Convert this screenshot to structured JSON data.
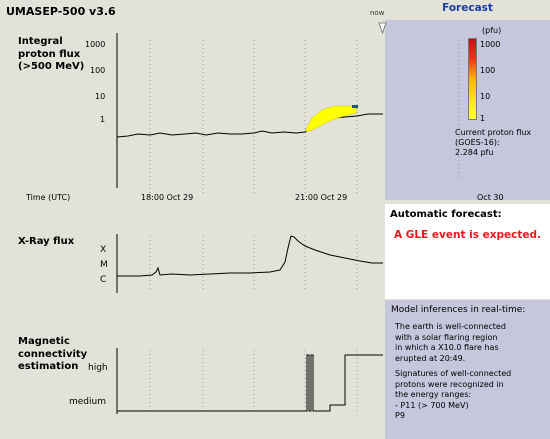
{
  "app_title": "UMASEP-500 v3.6",
  "now_label": "now",
  "forecast_header": "Forecast",
  "proton_panel": {
    "title_lines": [
      "Integral",
      "proton flux",
      "(>500 MeV)"
    ],
    "y_ticks": [
      "1000",
      "100",
      "10",
      "1"
    ],
    "x_axis_label": "Time (UTC)",
    "x_ticks": [
      "18:00 Oct 29",
      "21:00 Oct 29"
    ]
  },
  "forecast_panel": {
    "unit": "(pfu)",
    "colorbar_ticks": [
      "1000",
      "100",
      "10",
      "1"
    ],
    "current_flux_lines": [
      "Current proton flux",
      "(GOES-16):",
      "2.284 pfu"
    ],
    "date_label": "Oct 30"
  },
  "automatic_forecast": {
    "title": "Automatic forecast:",
    "message": "A GLE event is expected."
  },
  "xray_panel": {
    "title": "X-Ray flux",
    "y_ticks": [
      "X",
      "M",
      "C"
    ]
  },
  "magnetic_panel": {
    "title_lines": [
      "Magnetic",
      "connectivity",
      "estimation"
    ],
    "y_ticks": [
      "high",
      "medium"
    ]
  },
  "inferences": {
    "title": "Model inferences in real-time:",
    "paragraph1_lines": [
      "The earth is well-connected",
      "with a solar flaring region",
      "in which a X10.0 flare has",
      "erupted at 20:49."
    ],
    "paragraph2_lines": [
      "Signatures of well-connected",
      "protons were recognized in",
      "the energy ranges:",
      "- P11 (> 700 MeV)",
      "P9"
    ]
  },
  "colors": {
    "forecast_header": "#1a3aa8",
    "alert": "#e8191c",
    "panel_bg": "#c6c6dc",
    "forecast_fill": "#ffff00",
    "forecast_marker": "#1f4fa0"
  }
}
